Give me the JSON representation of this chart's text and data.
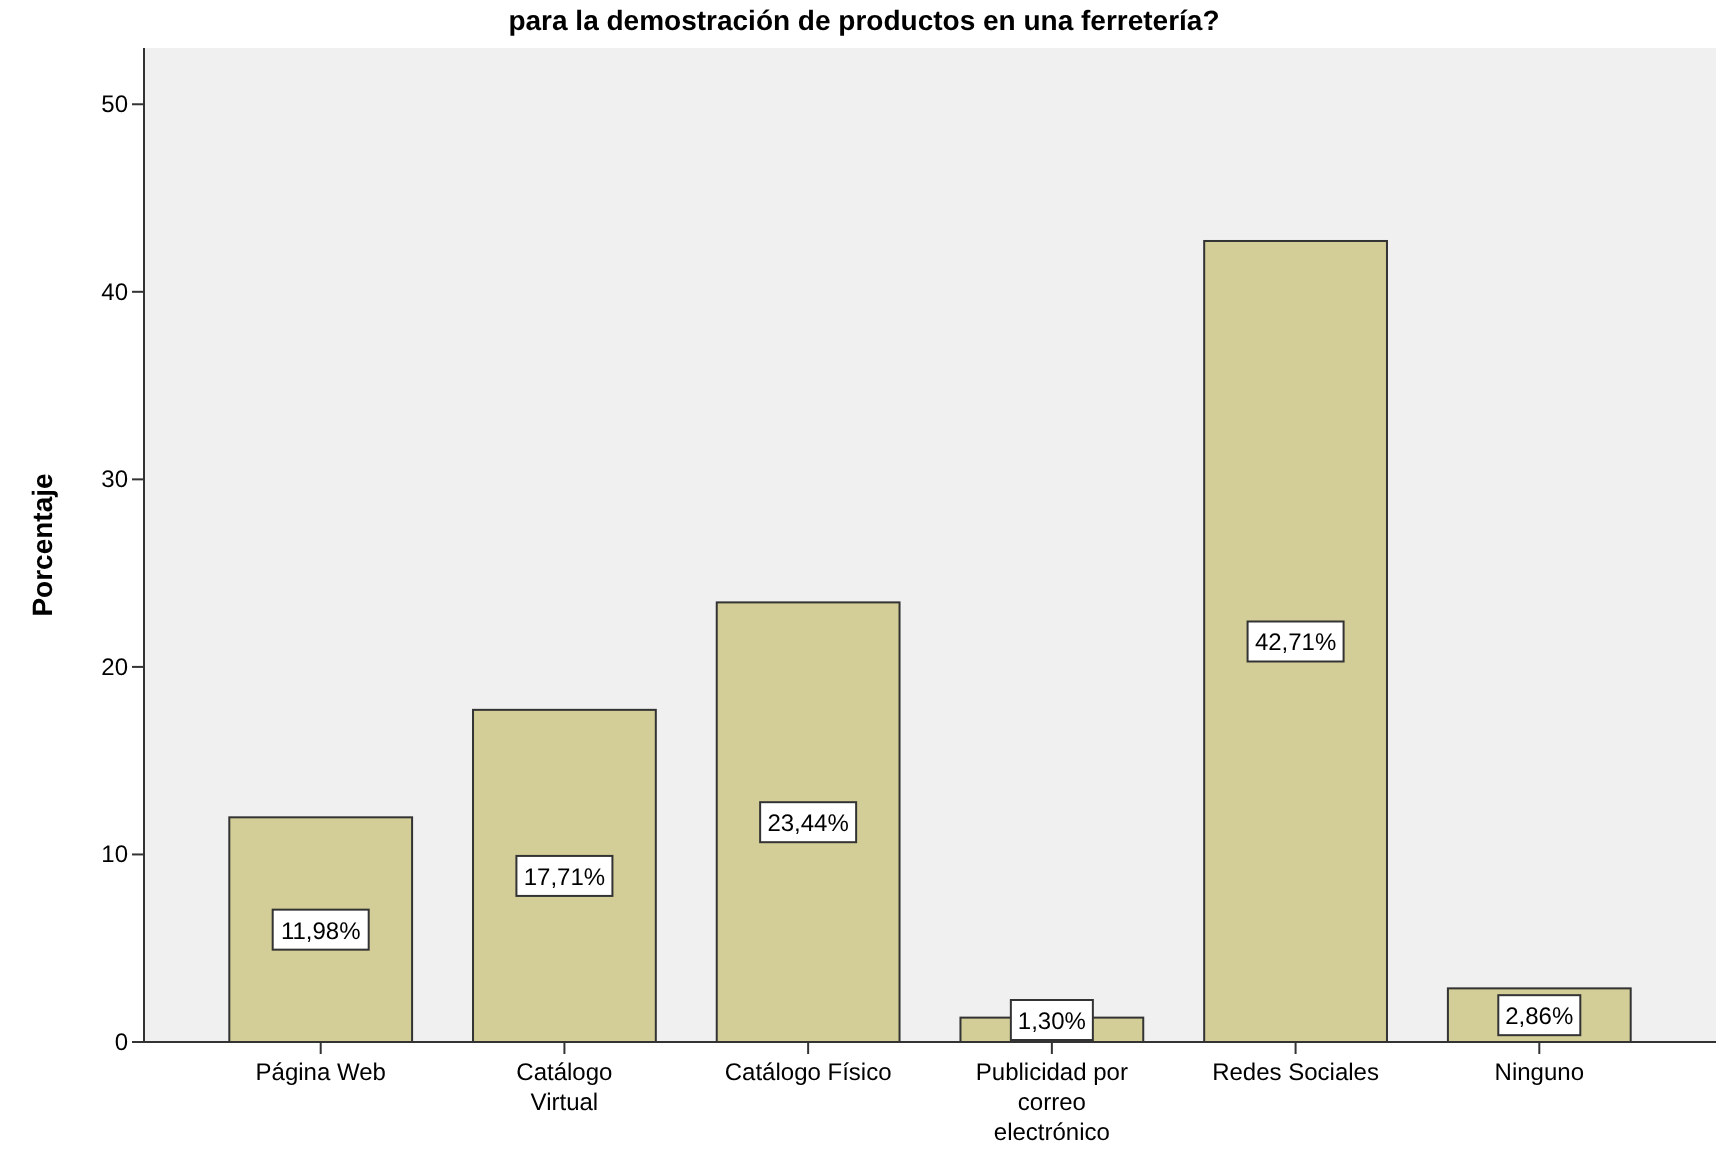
{
  "chart_data": {
    "type": "bar",
    "title": "para la demostración de productos en una ferretería?",
    "ylabel": "Porcentaje",
    "categories": [
      "Página Web",
      "Catálogo Virtual",
      "Catálogo Físico",
      "Publicidad por correo electrónico",
      "Redes Sociales",
      "Ninguno"
    ],
    "values": [
      11.98,
      17.71,
      23.44,
      1.3,
      42.71,
      2.86
    ],
    "value_labels": [
      "11,98%",
      "17,71%",
      "23,44%",
      "1,30%",
      "42,71%",
      "2,86%"
    ],
    "color": "#d3ce97",
    "ylim": [
      0,
      53
    ],
    "yticks": [
      0,
      10,
      20,
      30,
      40,
      50
    ],
    "grid": false
  }
}
